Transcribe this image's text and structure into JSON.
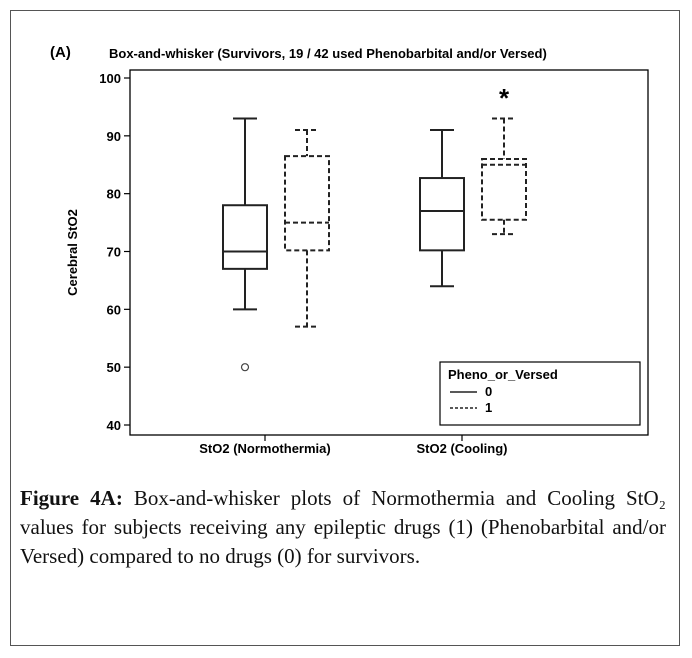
{
  "chart_data": {
    "type": "box",
    "panel_label": "(A)",
    "title": "Box-and-whisker (Survivors, 19 / 42 used Phenobarbital and/or Versed)",
    "ylabel": "Cerebral StO2",
    "xlabel": "",
    "ylim": [
      40,
      100
    ],
    "yticks": [
      40,
      50,
      60,
      70,
      80,
      90,
      100
    ],
    "categories": [
      "StO2 (Normothermia)",
      "StO2 (Cooling)"
    ],
    "series": [
      {
        "name": "0",
        "line_style": "solid",
        "boxes": [
          {
            "category": "StO2 (Normothermia)",
            "min": 60,
            "q1": 67,
            "median": 70,
            "q3": 78,
            "max": 93,
            "outliers": [
              50
            ]
          },
          {
            "category": "StO2 (Cooling)",
            "min": 64,
            "q1": 70.2,
            "median": 77,
            "q3": 82.7,
            "max": 91,
            "outliers": []
          }
        ]
      },
      {
        "name": "1",
        "line_style": "dashed",
        "boxes": [
          {
            "category": "StO2 (Normothermia)",
            "min": 57,
            "q1": 70.2,
            "median": 75,
            "q3": 86.5,
            "max": 91,
            "outliers": []
          },
          {
            "category": "StO2 (Cooling)",
            "min": 73,
            "q1": 75.5,
            "median": 85,
            "q3": 86,
            "max": 93,
            "outliers": []
          }
        ]
      }
    ],
    "annotations": [
      {
        "text": "*",
        "category": "StO2 (Cooling)",
        "series": "1",
        "y": 96.5
      }
    ],
    "legend": {
      "title": "Pheno_or_Versed",
      "position": "bottom-right"
    },
    "grid": false
  },
  "caption": {
    "lead": "Figure 4A:",
    "text": " Box-and-whisker plots of Normothermia and Cooling StO₂ values for subjects receiving any epileptic drugs (1) (Phenobarbital and/or Versed) compared to no drugs (0) for survivors."
  }
}
